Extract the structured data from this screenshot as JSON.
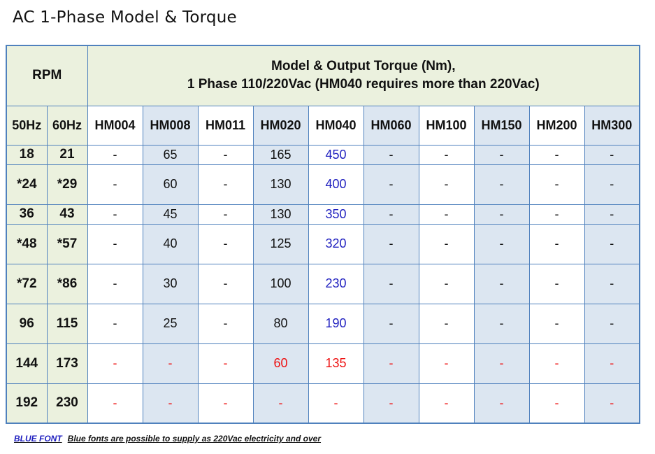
{
  "title": "AC 1-Phase Model & Torque",
  "table": {
    "rpm_header": "RPM",
    "model_header_line1": "Model & Output Torque (Nm),",
    "model_header_line2": "1 Phase 110/220Vac (HM040 requires more than 220Vac)",
    "hz_headers": [
      "50Hz",
      "60Hz"
    ],
    "models": [
      "HM004",
      "HM008",
      "HM011",
      "HM020",
      "HM040",
      "HM060",
      "HM100",
      "HM150",
      "HM200",
      "HM300"
    ],
    "rows": [
      {
        "hz50": "18",
        "hz60": "21",
        "values": [
          "-",
          "65",
          "-",
          "165",
          "450",
          "-",
          "-",
          "-",
          "-",
          "-"
        ],
        "colors": [
          "k",
          "k",
          "k",
          "k",
          "b",
          "k",
          "k",
          "k",
          "k",
          "k"
        ]
      },
      {
        "hz50": "*24",
        "hz60": "*29",
        "values": [
          "-",
          "60",
          "-",
          "130",
          "400",
          "-",
          "-",
          "-",
          "-",
          "-"
        ],
        "colors": [
          "k",
          "k",
          "k",
          "k",
          "b",
          "k",
          "k",
          "k",
          "k",
          "k"
        ]
      },
      {
        "hz50": "36",
        "hz60": "43",
        "values": [
          "-",
          "45",
          "-",
          "130",
          "350",
          "-",
          "-",
          "-",
          "-",
          "-"
        ],
        "colors": [
          "k",
          "k",
          "k",
          "k",
          "b",
          "k",
          "k",
          "k",
          "k",
          "k"
        ]
      },
      {
        "hz50": "*48",
        "hz60": "*57",
        "values": [
          "-",
          "40",
          "-",
          "125",
          "320",
          "-",
          "-",
          "-",
          "-",
          "-"
        ],
        "colors": [
          "k",
          "k",
          "k",
          "k",
          "b",
          "k",
          "k",
          "k",
          "k",
          "k"
        ]
      },
      {
        "hz50": "*72",
        "hz60": "*86",
        "values": [
          "-",
          "30",
          "-",
          "100",
          "230",
          "-",
          "-",
          "-",
          "-",
          "-"
        ],
        "colors": [
          "k",
          "k",
          "k",
          "k",
          "b",
          "k",
          "k",
          "k",
          "k",
          "k"
        ]
      },
      {
        "hz50": "96",
        "hz60": "115",
        "values": [
          "-",
          "25",
          "-",
          "80",
          "190",
          "-",
          "-",
          "-",
          "-",
          "-"
        ],
        "colors": [
          "k",
          "k",
          "k",
          "k",
          "b",
          "k",
          "k",
          "k",
          "k",
          "k"
        ]
      },
      {
        "hz50": "144",
        "hz60": "173",
        "values": [
          "-",
          "-",
          "-",
          "60",
          "135",
          "-",
          "-",
          "-",
          "-",
          "-"
        ],
        "colors": [
          "r",
          "r",
          "r",
          "r",
          "r",
          "r",
          "r",
          "r",
          "r",
          "r"
        ]
      },
      {
        "hz50": "192",
        "hz60": "230",
        "values": [
          "-",
          "-",
          "-",
          "-",
          "-",
          "-",
          "-",
          "-",
          "-",
          "-"
        ],
        "colors": [
          "r",
          "r",
          "r",
          "r",
          "r",
          "r",
          "r",
          "r",
          "r",
          "r"
        ]
      }
    ]
  },
  "footnote": {
    "keyword": "BLUE FONT",
    "text": "Blue fonts are possible to supply as 220Vac electricity and over"
  },
  "colors": {
    "border": "#4f81bd",
    "header_bg": "#ebf1de",
    "shade_bg": "#dce6f1",
    "blue_text": "#1f1fbf",
    "red_text": "#ee1111"
  }
}
